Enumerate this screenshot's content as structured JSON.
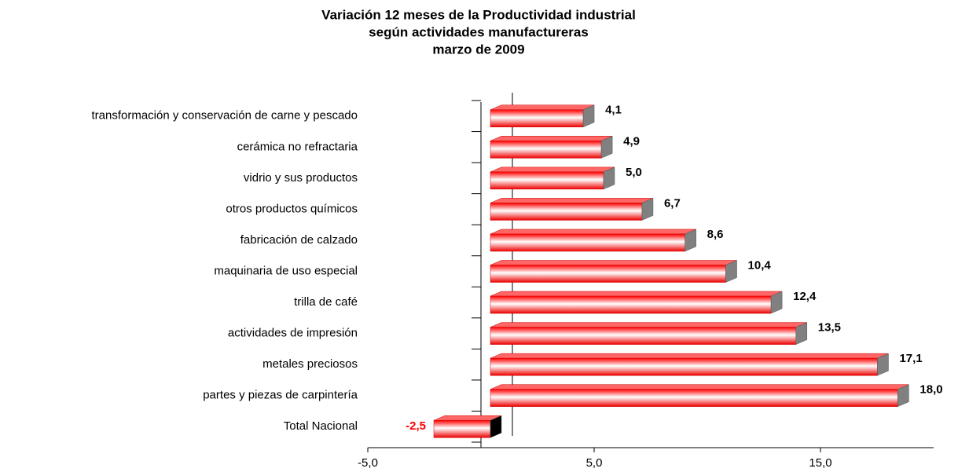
{
  "chart_data": {
    "type": "bar",
    "orientation": "horizontal",
    "title": [
      "Variación 12 meses de la Productividad industrial",
      "según actividades manufactureras",
      "marzo de 2009"
    ],
    "categories": [
      "transformación y conservación de carne y pescado",
      "cerámica no refractaria",
      "vidrio y sus productos",
      "otros productos químicos",
      "fabricación de calzado",
      "maquinaria de uso especial",
      "trilla de café",
      "actividades de impresión",
      "metales preciosos",
      "partes y piezas de carpintería",
      "Total Nacional"
    ],
    "values": [
      4.1,
      4.9,
      5.0,
      6.7,
      8.6,
      10.4,
      12.4,
      13.5,
      17.1,
      18.0,
      -2.5
    ],
    "value_labels": [
      "4,1",
      "4,9",
      "5,0",
      "6,7",
      "8,6",
      "10,4",
      "12,4",
      "13,5",
      "17,1",
      "18,0",
      "-2,5"
    ],
    "color": "#ff0000",
    "negative_label_color": "#ff0000",
    "xlim": [
      -5,
      20
    ],
    "xticks": [
      {
        "value": -5,
        "label": "-5,0"
      },
      {
        "value": 5,
        "label": "5,0"
      },
      {
        "value": 15,
        "label": "15,0"
      }
    ]
  }
}
